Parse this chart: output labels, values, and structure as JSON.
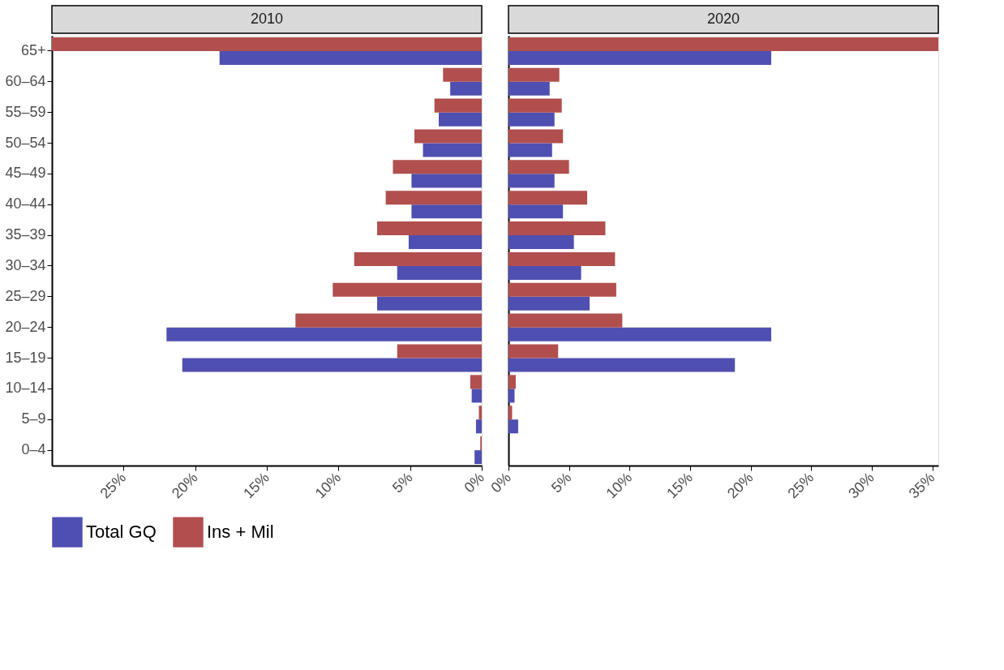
{
  "chart_data": [
    {
      "type": "bar",
      "orientation": "horizontal",
      "title": "2010",
      "legend": "bottom",
      "categories": [
        "65+",
        "60–64",
        "55–59",
        "50–54",
        "45–49",
        "40–44",
        "35–39",
        "30–34",
        "25–29",
        "20–24",
        "15–19",
        "10–14",
        "5–9",
        "0–4"
      ],
      "series": [
        {
          "name": "Total GQ",
          "color": "#4f4fb1",
          "values": [
            18.3,
            2.2,
            3.0,
            4.1,
            4.9,
            4.9,
            5.1,
            5.9,
            7.3,
            22.0,
            20.9,
            0.7,
            0.4,
            0.5
          ]
        },
        {
          "name": "Ins + Mil",
          "color": "#b14f4f",
          "values": [
            30,
            2.7,
            3.3,
            4.7,
            6.2,
            6.7,
            7.3,
            8.9,
            10.4,
            13.0,
            5.9,
            0.8,
            0.2,
            0.1
          ]
        }
      ],
      "xlim": [
        30,
        0
      ],
      "xticks": [
        {
          "value": 25,
          "label": "25%"
        },
        {
          "value": 20,
          "label": "20%"
        },
        {
          "value": 15,
          "label": "15%"
        },
        {
          "value": 10,
          "label": "10%"
        },
        {
          "value": 5,
          "label": "5%"
        },
        {
          "value": 0,
          "label": "0%"
        }
      ]
    },
    {
      "type": "bar",
      "orientation": "horizontal",
      "title": "2020",
      "legend": "bottom",
      "tick_labels": "x",
      "categories": [
        null,
        null,
        null,
        null,
        null,
        null,
        null,
        null,
        null,
        null,
        null,
        null,
        null,
        null
      ],
      "series": [
        {
          "name": "Total GQ",
          "color": "#4f4fb1",
          "values": [
            21.7,
            3.4,
            3.8,
            3.6,
            3.8,
            4.5,
            5.4,
            6.0,
            6.7,
            21.7,
            18.7,
            0.5,
            0.8,
            0
          ]
        },
        {
          "name": "Ins + Mil",
          "color": "#b14f4f",
          "values": [
            35.5,
            4.2,
            4.4,
            4.5,
            5.0,
            6.5,
            8.0,
            8.8,
            8.9,
            9.4,
            4.1,
            0.6,
            0.3,
            0
          ]
        }
      ],
      "xlim": [
        0,
        35.5
      ],
      "xticks": [
        {
          "value": 0,
          "label": "0%"
        },
        {
          "value": 5,
          "label": "5%"
        },
        {
          "value": 10,
          "label": "10%"
        },
        {
          "value": 15,
          "label": "15%"
        },
        {
          "value": 20,
          "label": "20%"
        },
        {
          "value": 25,
          "label": "25%"
        },
        {
          "value": 30,
          "label": "30%"
        },
        {
          "value": 35,
          "label": "35%"
        }
      ]
    }
  ]
}
